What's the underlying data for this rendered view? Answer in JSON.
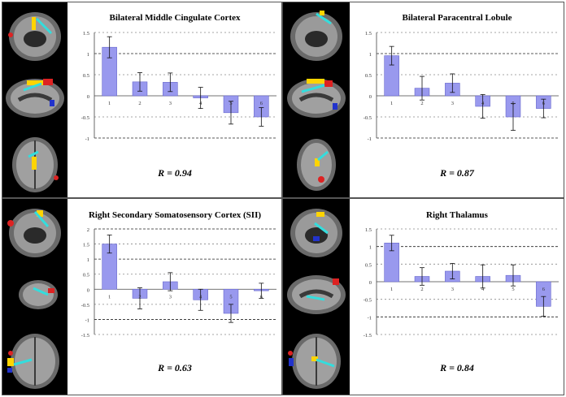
{
  "panels": [
    {
      "id": "mcc",
      "title": "Bilateral Middle Cingulate Cortex",
      "r_value": "R = 0.94",
      "chart_data": {
        "type": "bar",
        "title": "Bilateral Middle Cingulate Cortex",
        "categories": [
          "1",
          "2",
          "3",
          "4",
          "5",
          "6"
        ],
        "values": [
          1.15,
          0.33,
          0.32,
          -0.05,
          -0.4,
          -0.5
        ],
        "errors": [
          0.25,
          0.22,
          0.22,
          0.25,
          0.27,
          0.22
        ],
        "ylim": [
          -1,
          1.5
        ],
        "yticks": [
          "1.5",
          "1",
          "0.5",
          "0",
          "-0.5",
          "-1"
        ],
        "bar_color": "#9999ee"
      }
    },
    {
      "id": "pcl",
      "title": "Bilateral Paracentral Lobule",
      "r_value": "R = 0.87",
      "chart_data": {
        "type": "bar",
        "title": "Bilateral Paracentral Lobule",
        "categories": [
          "1",
          "2",
          "3",
          "4",
          "5",
          "6"
        ],
        "values": [
          0.95,
          0.18,
          0.3,
          -0.25,
          -0.5,
          -0.3
        ],
        "errors": [
          0.22,
          0.28,
          0.22,
          0.28,
          0.32,
          0.22
        ],
        "ylim": [
          -1,
          1.5
        ],
        "yticks": [
          "1.5",
          "1",
          "0.5",
          "0",
          "-0.5",
          "-1"
        ],
        "bar_color": "#9999ee"
      }
    },
    {
      "id": "sii",
      "title": "Right Secondary Somatosensory Cortex (SII)",
      "r_value": "R = 0.63",
      "chart_data": {
        "type": "bar",
        "title": "Right Secondary Somatosensory Cortex (SII)",
        "categories": [
          "1",
          "2",
          "3",
          "4",
          "5",
          "6"
        ],
        "values": [
          1.5,
          -0.3,
          0.25,
          -0.35,
          -0.8,
          -0.05
        ],
        "errors": [
          0.3,
          0.35,
          0.3,
          0.35,
          0.3,
          0.25
        ],
        "ylim": [
          -1.5,
          2
        ],
        "yticks": [
          "2",
          "1.5",
          "1",
          "0.5",
          "0",
          "-0.5",
          "-1",
          "-1.5"
        ],
        "bar_color": "#9999ee"
      }
    },
    {
      "id": "thal",
      "title": "Right Thalamus",
      "r_value": "R = 0.84",
      "chart_data": {
        "type": "bar",
        "title": "Right Thalamus",
        "categories": [
          "1",
          "2",
          "3",
          "4",
          "5",
          "6"
        ],
        "values": [
          1.1,
          0.15,
          0.3,
          0.15,
          0.18,
          -0.7
        ],
        "errors": [
          0.22,
          0.25,
          0.22,
          0.33,
          0.3,
          0.28
        ],
        "ylim": [
          -1.5,
          1.5
        ],
        "yticks": [
          "1.5",
          "1",
          "0.5",
          "0",
          "-0.5",
          "-1",
          "-1.5"
        ],
        "bar_color": "#9999ee"
      }
    }
  ]
}
